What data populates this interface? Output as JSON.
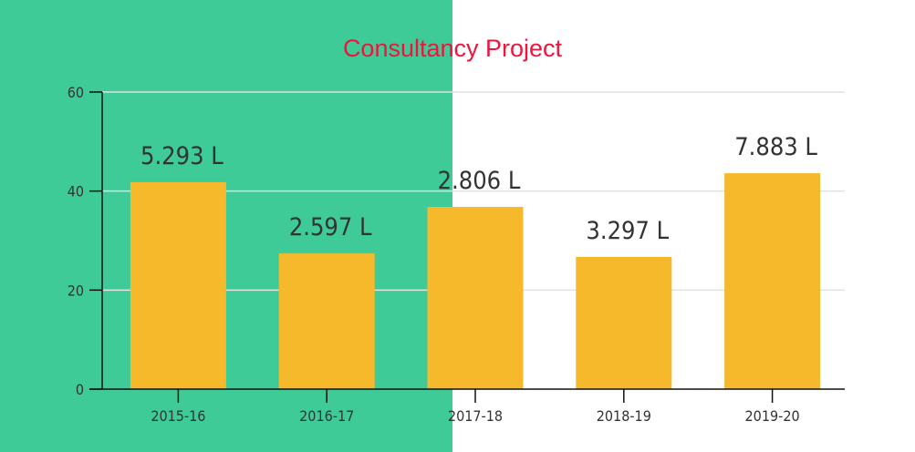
{
  "chart_data": {
    "type": "bar",
    "title": "Consultancy Project",
    "categories": [
      "2015-16",
      "2016-17",
      "2017-18",
      "2018-19",
      "2019-20"
    ],
    "values": [
      41.8,
      27.4,
      36.8,
      26.7,
      43.6
    ],
    "data_labels": [
      "5.293 L",
      "2.597 L",
      "2.806 L",
      "3.297 L",
      "7.883 L"
    ],
    "yticks": [
      0,
      20,
      40,
      60
    ],
    "ylim": [
      0,
      60
    ],
    "xlabel": "",
    "ylabel": "",
    "grid": true,
    "colors": {
      "bar": "#f6b92b",
      "background_panel": "#3ecb98",
      "title": "#f0143c"
    }
  }
}
